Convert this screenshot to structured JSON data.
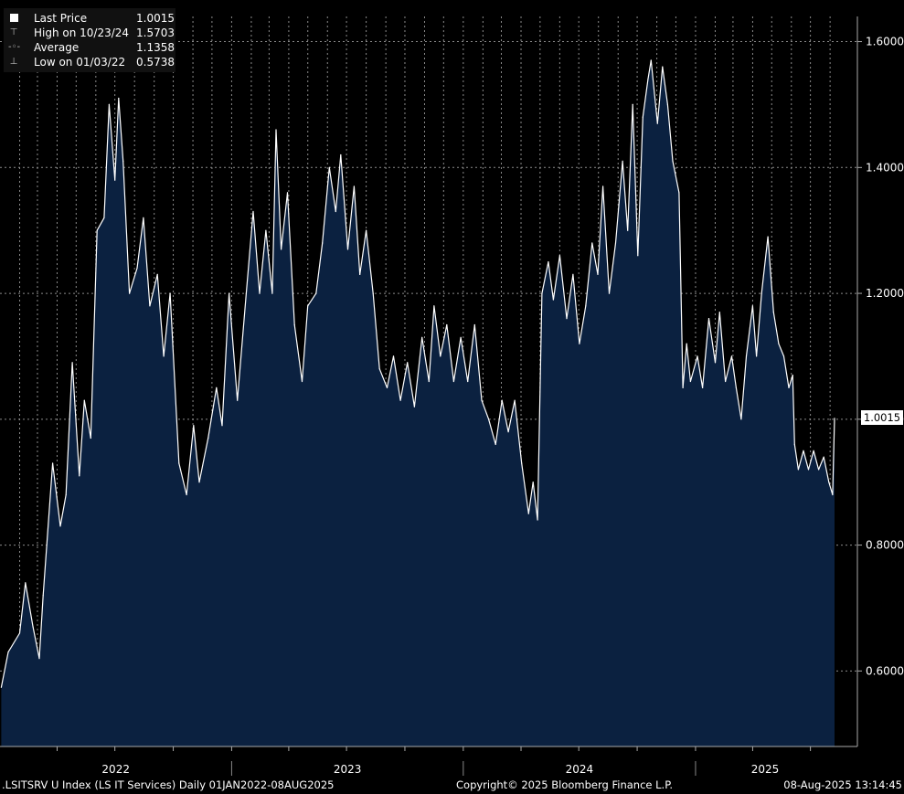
{
  "legend": {
    "last_price_label": "Last Price",
    "last_price_value": "1.0015",
    "high_label": "High on 10/23/24",
    "high_value": "1.5703",
    "average_label": "Average",
    "average_value": "1.1358",
    "low_label": "Low on 01/03/22",
    "low_value": "0.5738"
  },
  "last_value_tag": "1.0015",
  "footer": {
    "left": ".LSITSRV U Index (LS IT Services)  Daily 01JAN2022-08AUG2025",
    "center": "Copyright© 2025 Bloomberg Finance L.P.",
    "right": "08-Aug-2025 13:14:45"
  },
  "colors": {
    "background": "#000000",
    "area_fill": "#0b2140",
    "line": "#ffffff",
    "grid": "#8a8a8a"
  },
  "chart_data": {
    "type": "area",
    "x_range": [
      "2022-01-01",
      "2025-08-08"
    ],
    "x_tick_labels": [
      "2022",
      "2023",
      "2024",
      "2025"
    ],
    "y_range": [
      0.48,
      1.64
    ],
    "y_tick_values": [
      0.6,
      0.8,
      1.0,
      1.2,
      1.4,
      1.6
    ],
    "y_tick_labels": [
      "0.6000",
      "0.8000",
      "1.0000",
      "1.2000",
      "1.4000",
      "1.6000"
    ],
    "grid": true,
    "legend_position": "top-left",
    "series": [
      {
        "name": "Last Price",
        "points": [
          [
            "2022-01-03",
            0.574
          ],
          [
            "2022-01-14",
            0.63
          ],
          [
            "2022-02-01",
            0.66
          ],
          [
            "2022-02-10",
            0.74
          ],
          [
            "2022-02-22",
            0.67
          ],
          [
            "2022-03-04",
            0.62
          ],
          [
            "2022-03-10",
            0.72
          ],
          [
            "2022-03-25",
            0.93
          ],
          [
            "2022-04-06",
            0.83
          ],
          [
            "2022-04-15",
            0.88
          ],
          [
            "2022-04-25",
            1.09
          ],
          [
            "2022-05-06",
            0.91
          ],
          [
            "2022-05-14",
            1.03
          ],
          [
            "2022-05-24",
            0.97
          ],
          [
            "2022-06-03",
            1.3
          ],
          [
            "2022-06-14",
            1.32
          ],
          [
            "2022-06-22",
            1.5
          ],
          [
            "2022-07-01",
            1.38
          ],
          [
            "2022-07-07",
            1.51
          ],
          [
            "2022-07-14",
            1.41
          ],
          [
            "2022-07-24",
            1.2
          ],
          [
            "2022-08-05",
            1.24
          ],
          [
            "2022-08-15",
            1.32
          ],
          [
            "2022-08-25",
            1.18
          ],
          [
            "2022-09-06",
            1.23
          ],
          [
            "2022-09-16",
            1.1
          ],
          [
            "2022-09-26",
            1.2
          ],
          [
            "2022-10-10",
            0.93
          ],
          [
            "2022-10-22",
            0.88
          ],
          [
            "2022-11-02",
            0.99
          ],
          [
            "2022-11-11",
            0.9
          ],
          [
            "2022-11-25",
            0.97
          ],
          [
            "2022-12-08",
            1.05
          ],
          [
            "2022-12-17",
            0.99
          ],
          [
            "2022-12-28",
            1.2
          ],
          [
            "2023-01-10",
            1.03
          ],
          [
            "2023-01-24",
            1.2
          ],
          [
            "2023-02-04",
            1.33
          ],
          [
            "2023-02-14",
            1.2
          ],
          [
            "2023-02-24",
            1.3
          ],
          [
            "2023-03-06",
            1.2
          ],
          [
            "2023-03-12",
            1.46
          ],
          [
            "2023-03-20",
            1.27
          ],
          [
            "2023-03-30",
            1.36
          ],
          [
            "2023-04-10",
            1.15
          ],
          [
            "2023-04-22",
            1.06
          ],
          [
            "2023-05-01",
            1.18
          ],
          [
            "2023-05-14",
            1.2
          ],
          [
            "2023-05-24",
            1.28
          ],
          [
            "2023-06-04",
            1.4
          ],
          [
            "2023-06-14",
            1.33
          ],
          [
            "2023-06-22",
            1.42
          ],
          [
            "2023-07-03",
            1.27
          ],
          [
            "2023-07-13",
            1.37
          ],
          [
            "2023-07-22",
            1.23
          ],
          [
            "2023-08-01",
            1.3
          ],
          [
            "2023-08-12",
            1.2
          ],
          [
            "2023-08-22",
            1.08
          ],
          [
            "2023-09-03",
            1.05
          ],
          [
            "2023-09-13",
            1.1
          ],
          [
            "2023-09-24",
            1.03
          ],
          [
            "2023-10-05",
            1.09
          ],
          [
            "2023-10-16",
            1.02
          ],
          [
            "2023-10-28",
            1.13
          ],
          [
            "2023-11-08",
            1.06
          ],
          [
            "2023-11-16",
            1.18
          ],
          [
            "2023-11-26",
            1.1
          ],
          [
            "2023-12-06",
            1.15
          ],
          [
            "2023-12-17",
            1.06
          ],
          [
            "2023-12-28",
            1.13
          ],
          [
            "2024-01-08",
            1.06
          ],
          [
            "2024-01-19",
            1.15
          ],
          [
            "2024-01-30",
            1.03
          ],
          [
            "2024-02-10",
            1.0
          ],
          [
            "2024-02-21",
            0.96
          ],
          [
            "2024-03-02",
            1.03
          ],
          [
            "2024-03-12",
            0.98
          ],
          [
            "2024-03-22",
            1.03
          ],
          [
            "2024-04-02",
            0.93
          ],
          [
            "2024-04-13",
            0.85
          ],
          [
            "2024-04-20",
            0.9
          ],
          [
            "2024-04-27",
            0.84
          ],
          [
            "2024-05-04",
            1.2
          ],
          [
            "2024-05-14",
            1.25
          ],
          [
            "2024-05-22",
            1.19
          ],
          [
            "2024-06-01",
            1.26
          ],
          [
            "2024-06-12",
            1.16
          ],
          [
            "2024-06-22",
            1.23
          ],
          [
            "2024-07-02",
            1.12
          ],
          [
            "2024-07-12",
            1.18
          ],
          [
            "2024-07-22",
            1.28
          ],
          [
            "2024-07-31",
            1.23
          ],
          [
            "2024-08-08",
            1.37
          ],
          [
            "2024-08-18",
            1.2
          ],
          [
            "2024-08-28",
            1.28
          ],
          [
            "2024-09-08",
            1.41
          ],
          [
            "2024-09-16",
            1.3
          ],
          [
            "2024-09-24",
            1.5
          ],
          [
            "2024-10-02",
            1.26
          ],
          [
            "2024-10-10",
            1.48
          ],
          [
            "2024-10-18",
            1.54
          ],
          [
            "2024-10-23",
            1.5703
          ],
          [
            "2024-11-02",
            1.47
          ],
          [
            "2024-11-10",
            1.56
          ],
          [
            "2024-11-18",
            1.5
          ],
          [
            "2024-11-26",
            1.41
          ],
          [
            "2024-12-06",
            1.36
          ],
          [
            "2024-12-12",
            1.05
          ],
          [
            "2024-12-18",
            1.12
          ],
          [
            "2024-12-24",
            1.06
          ],
          [
            "2025-01-04",
            1.1
          ],
          [
            "2025-01-12",
            1.05
          ],
          [
            "2025-01-22",
            1.16
          ],
          [
            "2025-02-01",
            1.09
          ],
          [
            "2025-02-08",
            1.17
          ],
          [
            "2025-02-17",
            1.06
          ],
          [
            "2025-02-27",
            1.1
          ],
          [
            "2025-03-06",
            1.05
          ],
          [
            "2025-03-14",
            1.0
          ],
          [
            "2025-03-22",
            1.1
          ],
          [
            "2025-04-01",
            1.18
          ],
          [
            "2025-04-07",
            1.1
          ],
          [
            "2025-04-15",
            1.2
          ],
          [
            "2025-04-25",
            1.29
          ],
          [
            "2025-05-04",
            1.17
          ],
          [
            "2025-05-12",
            1.12
          ],
          [
            "2025-05-20",
            1.1
          ],
          [
            "2025-05-28",
            1.05
          ],
          [
            "2025-06-03",
            1.07
          ],
          [
            "2025-06-06",
            0.96
          ],
          [
            "2025-06-12",
            0.92
          ],
          [
            "2025-06-20",
            0.95
          ],
          [
            "2025-06-28",
            0.92
          ],
          [
            "2025-07-06",
            0.95
          ],
          [
            "2025-07-14",
            0.92
          ],
          [
            "2025-07-22",
            0.94
          ],
          [
            "2025-07-30",
            0.9
          ],
          [
            "2025-08-05",
            0.88
          ],
          [
            "2025-08-08",
            1.0015
          ]
        ]
      }
    ]
  }
}
